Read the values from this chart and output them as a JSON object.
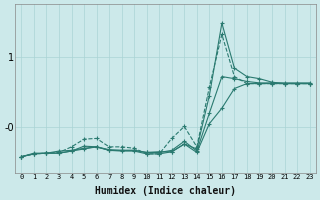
{
  "xlabel": "Humidex (Indice chaleur)",
  "ylabel": "",
  "bg_color": "#cce9ea",
  "grid_color": "#aad4d5",
  "line_color": "#2a7a70",
  "x_values": [
    0,
    1,
    2,
    3,
    4,
    5,
    6,
    7,
    8,
    9,
    10,
    11,
    12,
    13,
    14,
    15,
    16,
    17,
    18,
    19,
    20,
    21,
    22,
    23
  ],
  "line1": [
    -0.42,
    -0.38,
    -0.37,
    -0.37,
    -0.34,
    -0.31,
    -0.28,
    -0.33,
    -0.33,
    -0.33,
    -0.36,
    -0.35,
    -0.35,
    -0.24,
    -0.36,
    0.05,
    0.27,
    0.55,
    0.62,
    0.62,
    0.62,
    0.62,
    0.62,
    0.62
  ],
  "line2": [
    -0.42,
    -0.38,
    -0.37,
    -0.36,
    -0.28,
    -0.17,
    -0.16,
    -0.28,
    -0.28,
    -0.3,
    -0.38,
    -0.38,
    -0.16,
    0.01,
    -0.28,
    0.57,
    1.32,
    0.72,
    0.62,
    0.62,
    0.62,
    0.62,
    0.62,
    0.62
  ],
  "line3": [
    -0.42,
    -0.38,
    -0.37,
    -0.37,
    -0.34,
    -0.27,
    -0.28,
    -0.33,
    -0.34,
    -0.34,
    -0.38,
    -0.38,
    -0.35,
    -0.24,
    -0.31,
    0.45,
    1.48,
    0.84,
    0.72,
    0.69,
    0.64,
    0.62,
    0.62,
    0.62
  ],
  "line4": [
    -0.42,
    -0.37,
    -0.37,
    -0.34,
    -0.33,
    -0.3,
    -0.28,
    -0.32,
    -0.33,
    -0.33,
    -0.36,
    -0.36,
    -0.33,
    -0.2,
    -0.34,
    0.2,
    0.72,
    0.69,
    0.65,
    0.63,
    0.63,
    0.63,
    0.63,
    0.63
  ],
  "yticks": [
    0.0,
    1.0
  ],
  "ytick_labels": [
    "-0",
    "1"
  ],
  "ylim": [
    -0.65,
    1.75
  ],
  "xlim": [
    -0.5,
    23.5
  ]
}
